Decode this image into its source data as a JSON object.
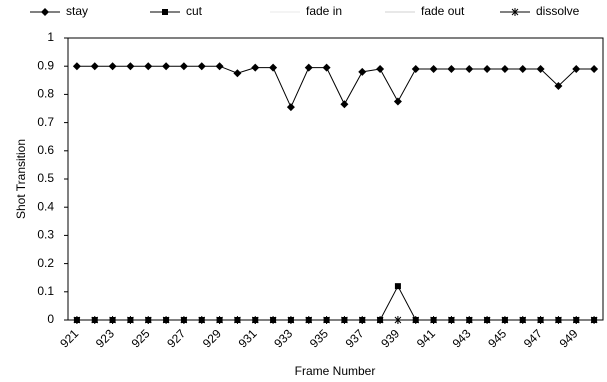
{
  "chart_data": {
    "type": "line",
    "x": [
      921,
      922,
      923,
      924,
      925,
      926,
      927,
      928,
      929,
      930,
      931,
      932,
      933,
      934,
      935,
      936,
      937,
      938,
      939,
      940,
      941,
      942,
      943,
      944,
      945,
      946,
      947,
      948,
      949,
      950
    ],
    "xlim": [
      920.5,
      950.5
    ],
    "xticks": [
      921,
      923,
      925,
      927,
      929,
      931,
      933,
      935,
      937,
      939,
      941,
      943,
      945,
      947,
      949
    ],
    "ylim": [
      0,
      1
    ],
    "yticks": [
      0,
      0.1,
      0.2,
      0.3,
      0.4,
      0.5,
      0.6,
      0.7,
      0.8,
      0.9,
      1
    ],
    "xlabel": "Frame Number",
    "ylabel": "Shot Transition",
    "legend": "top",
    "series": [
      {
        "name": "stay",
        "color": "#000000",
        "marker": "diamond",
        "values": [
          0.9,
          0.9,
          0.9,
          0.9,
          0.9,
          0.9,
          0.9,
          0.9,
          0.9,
          0.875,
          0.895,
          0.895,
          0.755,
          0.895,
          0.895,
          0.765,
          0.88,
          0.89,
          0.775,
          0.89,
          0.89,
          0.89,
          0.89,
          0.89,
          0.89,
          0.89,
          0.89,
          0.83,
          0.89,
          0.89
        ]
      },
      {
        "name": "cut",
        "color": "#000000",
        "marker": "square",
        "values": [
          0,
          0,
          0,
          0,
          0,
          0,
          0,
          0,
          0,
          0,
          0,
          0,
          0,
          0,
          0,
          0,
          0,
          0,
          0.12,
          0,
          0,
          0,
          0,
          0,
          0,
          0,
          0,
          0,
          0,
          0
        ]
      },
      {
        "name": "fade in",
        "color": "#e8e8e8",
        "marker": "none",
        "values": [
          0,
          0,
          0,
          0,
          0,
          0,
          0,
          0,
          0,
          0,
          0,
          0,
          0,
          0,
          0,
          0,
          0,
          0,
          0,
          0,
          0,
          0,
          0,
          0,
          0,
          0,
          0,
          0,
          0,
          0
        ]
      },
      {
        "name": "fade out",
        "color": "#d0d0d0",
        "marker": "none",
        "values": [
          0,
          0,
          0,
          0,
          0,
          0,
          0,
          0,
          0,
          0,
          0,
          0,
          0,
          0,
          0,
          0,
          0,
          0,
          0,
          0,
          0,
          0,
          0,
          0,
          0,
          0,
          0,
          0,
          0,
          0
        ]
      },
      {
        "name": "dissolve",
        "color": "#000000",
        "marker": "star",
        "values": [
          0,
          0,
          0,
          0,
          0,
          0,
          0,
          0,
          0,
          0,
          0,
          0,
          0,
          0,
          0,
          0,
          0,
          0,
          0,
          0,
          0,
          0,
          0,
          0,
          0,
          0,
          0,
          0,
          0,
          0
        ]
      }
    ]
  }
}
